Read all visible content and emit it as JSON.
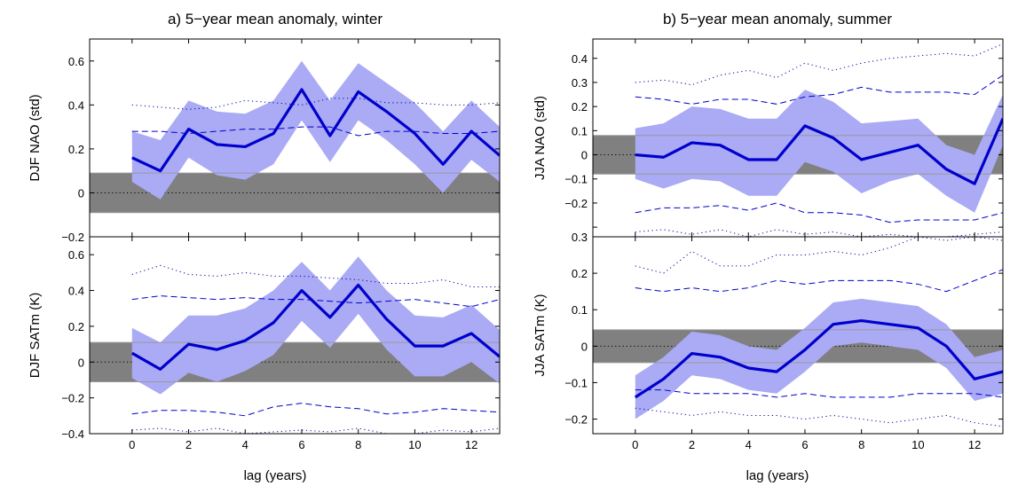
{
  "figure": {
    "title_left": "a) 5−year mean anomaly, winter",
    "title_right": "b) 5−year mean anomaly, summer",
    "xlabel": "lag (years)"
  },
  "colors": {
    "line": "#0000cc",
    "band": "#aaaaf5",
    "shade": "#808080",
    "dash": "#0000cc",
    "dot": "#0000aa",
    "zero": "#000000",
    "thin": "#9a9a9a"
  },
  "chart_data": [
    {
      "id": "a-top",
      "type": "line",
      "ylabel": "DJF NAO (std)",
      "xlim": [
        -1.5,
        13
      ],
      "ylim": [
        -0.2,
        0.7
      ],
      "xticks": [
        0,
        2,
        4,
        6,
        8,
        10,
        12
      ],
      "xticklabels": [
        "",
        "",
        "",
        "",
        "",
        "",
        ""
      ],
      "yticks": [
        -0.2,
        0,
        0.2,
        0.4,
        0.6
      ],
      "yticklabels": [
        "−0.2",
        "0",
        "0.2",
        "0.4",
        "0.6"
      ],
      "x": [
        0,
        1,
        2,
        3,
        4,
        5,
        6,
        7,
        8,
        9,
        10,
        11,
        12,
        13
      ],
      "mean": [
        0.16,
        0.1,
        0.29,
        0.22,
        0.21,
        0.27,
        0.47,
        0.26,
        0.46,
        0.37,
        0.27,
        0.13,
        0.28,
        0.17
      ],
      "band_upper": [
        0.28,
        0.24,
        0.42,
        0.37,
        0.36,
        0.42,
        0.6,
        0.42,
        0.59,
        0.5,
        0.41,
        0.28,
        0.42,
        0.3
      ],
      "band_lower": [
        0.05,
        -0.03,
        0.16,
        0.08,
        0.06,
        0.13,
        0.33,
        0.14,
        0.33,
        0.24,
        0.13,
        0.0,
        0.15,
        0.05
      ],
      "dashed_upper": [
        0.28,
        0.28,
        0.27,
        0.28,
        0.29,
        0.29,
        0.3,
        0.3,
        0.26,
        0.28,
        0.28,
        0.27,
        0.27,
        0.28
      ],
      "dotted_upper": [
        0.4,
        0.39,
        0.38,
        0.39,
        0.42,
        0.41,
        0.4,
        0.43,
        0.43,
        0.41,
        0.41,
        0.4,
        0.4,
        0.41
      ],
      "shade_range": [
        -0.09,
        0.09
      ],
      "thin_line": 0.09
    },
    {
      "id": "a-bottom",
      "type": "line",
      "ylabel": "DJF SATm (K)",
      "xlim": [
        -1.5,
        13
      ],
      "ylim": [
        -0.4,
        0.7
      ],
      "xticks": [
        0,
        2,
        4,
        6,
        8,
        10,
        12
      ],
      "xticklabels": [
        "0",
        "2",
        "4",
        "6",
        "8",
        "10",
        "12"
      ],
      "yticks": [
        -0.4,
        -0.2,
        0,
        0.2,
        0.4,
        0.6
      ],
      "yticklabels": [
        "−0.4",
        "−0.2",
        "0",
        "0.2",
        "0.4",
        "0.6"
      ],
      "x": [
        0,
        1,
        2,
        3,
        4,
        5,
        6,
        7,
        8,
        9,
        10,
        11,
        12,
        13
      ],
      "mean": [
        0.05,
        -0.04,
        0.1,
        0.07,
        0.12,
        0.22,
        0.4,
        0.25,
        0.43,
        0.24,
        0.09,
        0.09,
        0.16,
        0.03
      ],
      "band_upper": [
        0.19,
        0.11,
        0.26,
        0.26,
        0.3,
        0.4,
        0.56,
        0.4,
        0.59,
        0.4,
        0.26,
        0.25,
        0.32,
        0.18
      ],
      "band_lower": [
        -0.09,
        -0.18,
        -0.06,
        -0.11,
        -0.05,
        0.04,
        0.23,
        0.08,
        0.27,
        0.07,
        -0.08,
        -0.08,
        0.0,
        -0.12
      ],
      "dashed_upper": [
        0.35,
        0.37,
        0.36,
        0.35,
        0.36,
        0.35,
        0.35,
        0.34,
        0.33,
        0.34,
        0.35,
        0.33,
        0.31,
        0.35
      ],
      "dashed_lower": [
        -0.29,
        -0.27,
        -0.27,
        -0.28,
        -0.3,
        -0.25,
        -0.23,
        -0.25,
        -0.26,
        -0.29,
        -0.28,
        -0.26,
        -0.27,
        -0.28
      ],
      "dotted_upper": [
        0.49,
        0.54,
        0.49,
        0.48,
        0.5,
        0.48,
        0.48,
        0.47,
        0.46,
        0.44,
        0.44,
        0.46,
        0.42,
        0.42
      ],
      "dotted_lower": [
        -0.38,
        -0.37,
        -0.39,
        -0.37,
        -0.4,
        -0.39,
        -0.38,
        -0.39,
        -0.37,
        -0.4,
        -0.4,
        -0.38,
        -0.39,
        -0.37
      ],
      "shade_range": [
        -0.11,
        0.11
      ],
      "thin_line": 0.11
    },
    {
      "id": "b-top",
      "type": "line",
      "ylabel": "JJA NAO (std)",
      "xlim": [
        -1.5,
        13
      ],
      "ylim": [
        -0.34,
        0.48
      ],
      "xticks": [
        0,
        2,
        4,
        6,
        8,
        10,
        12
      ],
      "xticklabels": [
        "",
        "",
        "",
        "",
        "",
        "",
        ""
      ],
      "yticks": [
        -0.3,
        -0.2,
        -0.1,
        0,
        0.1,
        0.2,
        0.3,
        0.4
      ],
      "yticklabels": [
        "",
        "−0.2",
        "−0.1",
        "0",
        "0.1",
        "0.2",
        "0.3",
        "0.4"
      ],
      "x": [
        0,
        1,
        2,
        3,
        4,
        5,
        6,
        7,
        8,
        9,
        10,
        11,
        12,
        13
      ],
      "mean": [
        0.0,
        -0.01,
        0.05,
        0.04,
        -0.02,
        -0.02,
        0.12,
        0.07,
        -0.02,
        0.01,
        0.04,
        -0.06,
        -0.12,
        0.15
      ],
      "band_upper": [
        0.11,
        0.13,
        0.2,
        0.19,
        0.15,
        0.15,
        0.27,
        0.22,
        0.13,
        0.14,
        0.15,
        0.04,
        0.0,
        0.25
      ],
      "band_lower": [
        -0.1,
        -0.14,
        -0.1,
        -0.11,
        -0.17,
        -0.17,
        -0.03,
        -0.07,
        -0.16,
        -0.11,
        -0.08,
        -0.17,
        -0.24,
        0.04
      ],
      "dashed_upper": [
        0.24,
        0.23,
        0.21,
        0.23,
        0.23,
        0.21,
        0.24,
        0.25,
        0.28,
        0.26,
        0.26,
        0.26,
        0.25,
        0.33
      ],
      "dashed_lower": [
        -0.24,
        -0.22,
        -0.22,
        -0.21,
        -0.23,
        -0.2,
        -0.24,
        -0.24,
        -0.25,
        -0.28,
        -0.27,
        -0.27,
        -0.27,
        -0.24
      ],
      "dotted_upper": [
        0.3,
        0.31,
        0.29,
        0.33,
        0.35,
        0.32,
        0.38,
        0.35,
        0.38,
        0.4,
        0.41,
        0.42,
        0.41,
        0.46
      ],
      "dotted_lower": [
        -0.32,
        -0.31,
        -0.33,
        -0.31,
        -0.34,
        -0.31,
        -0.33,
        -0.32,
        -0.34,
        -0.33,
        -0.34,
        -0.34,
        -0.33,
        -0.32
      ],
      "shade_range": [
        -0.08,
        0.08
      ],
      "thin_line": 0.08
    },
    {
      "id": "b-bottom",
      "type": "line",
      "ylabel": "JJA SATm (K)",
      "xlim": [
        -1.5,
        13
      ],
      "ylim": [
        -0.24,
        0.3
      ],
      "xticks": [
        0,
        2,
        4,
        6,
        8,
        10,
        12
      ],
      "xticklabels": [
        "0",
        "2",
        "4",
        "6",
        "8",
        "10",
        "12"
      ],
      "yticks": [
        -0.2,
        -0.1,
        0,
        0.1,
        0.2,
        0.3
      ],
      "yticklabels": [
        "−0.2",
        "−0.1",
        "0",
        "0.1",
        "0.2",
        "0.3"
      ],
      "x": [
        0,
        1,
        2,
        3,
        4,
        5,
        6,
        7,
        8,
        9,
        10,
        11,
        12,
        13
      ],
      "mean": [
        -0.14,
        -0.09,
        -0.02,
        -0.03,
        -0.06,
        -0.07,
        -0.01,
        0.06,
        0.07,
        0.06,
        0.05,
        0.0,
        -0.09,
        -0.07
      ],
      "band_upper": [
        -0.08,
        -0.03,
        0.04,
        0.03,
        0.0,
        -0.01,
        0.05,
        0.12,
        0.13,
        0.12,
        0.11,
        0.06,
        -0.03,
        -0.01
      ],
      "band_lower": [
        -0.2,
        -0.15,
        -0.08,
        -0.09,
        -0.12,
        -0.13,
        -0.07,
        0.0,
        0.01,
        0.0,
        -0.01,
        -0.06,
        -0.15,
        -0.13
      ],
      "dashed_upper": [
        0.16,
        0.15,
        0.16,
        0.15,
        0.16,
        0.18,
        0.17,
        0.18,
        0.18,
        0.18,
        0.17,
        0.15,
        0.18,
        0.21
      ],
      "dashed_lower": [
        -0.12,
        -0.12,
        -0.13,
        -0.13,
        -0.13,
        -0.14,
        -0.13,
        -0.14,
        -0.14,
        -0.14,
        -0.13,
        -0.13,
        -0.13,
        -0.14
      ],
      "dotted_upper": [
        0.22,
        0.2,
        0.26,
        0.22,
        0.22,
        0.25,
        0.25,
        0.26,
        0.25,
        0.27,
        0.3,
        0.29,
        0.3,
        0.29
      ],
      "dotted_lower": [
        -0.17,
        -0.18,
        -0.19,
        -0.18,
        -0.19,
        -0.19,
        -0.2,
        -0.19,
        -0.2,
        -0.21,
        -0.2,
        -0.19,
        -0.21,
        -0.22
      ],
      "shade_range": [
        -0.045,
        0.045
      ],
      "thin_line": 0.045
    }
  ]
}
